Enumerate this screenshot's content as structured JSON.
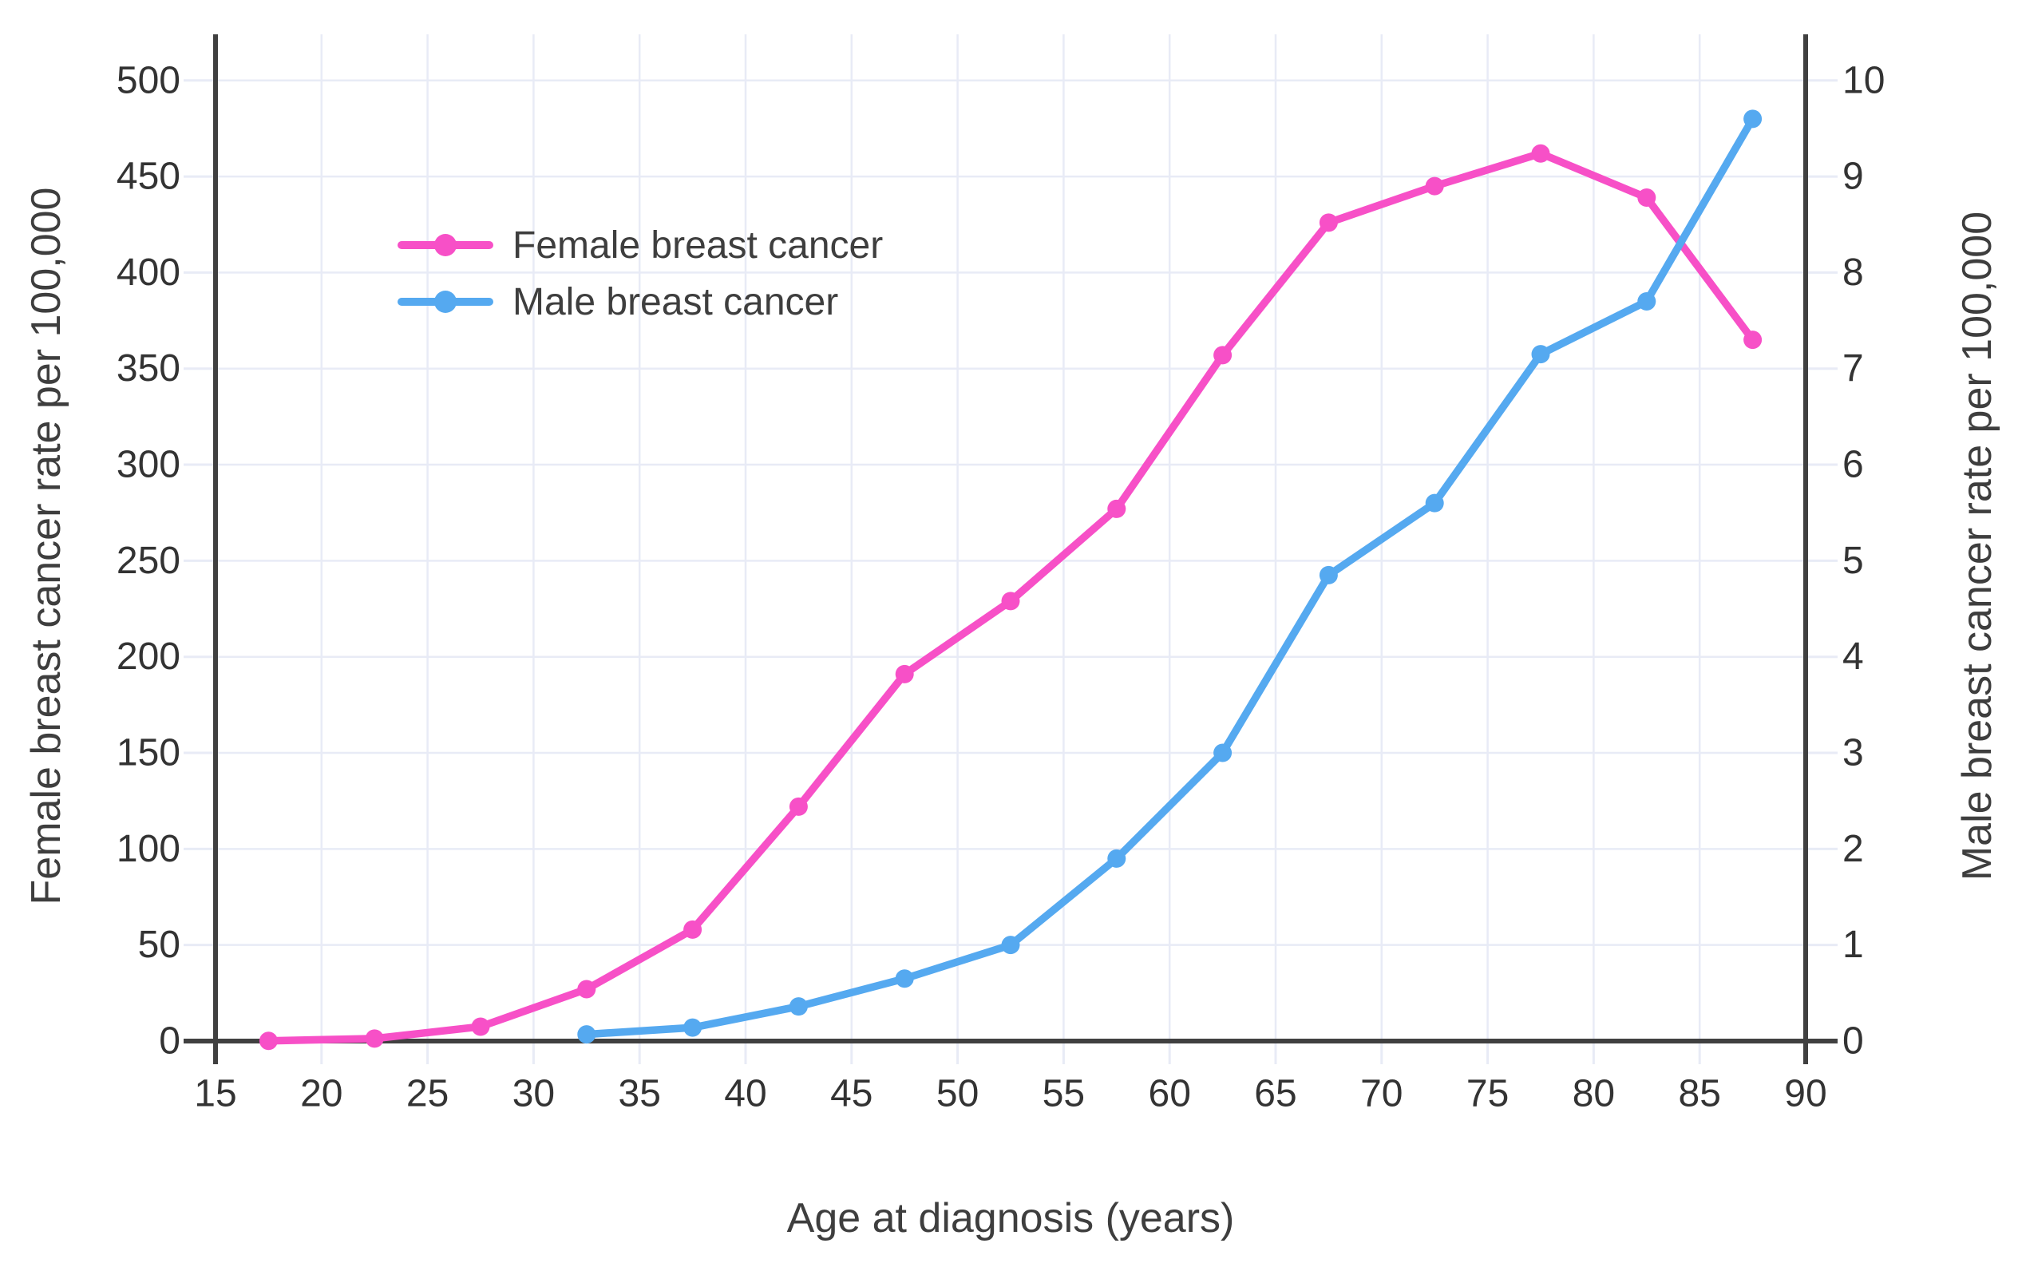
{
  "chart_data": {
    "type": "line",
    "title": "",
    "xlabel": "Age at diagnosis (years)",
    "ylabel_left": "Female breast cancer rate per 100,000",
    "ylabel_right": "Male breast cancer rate per 100,000",
    "x": [
      17.5,
      22.5,
      27.5,
      32.5,
      37.5,
      42.5,
      47.5,
      52.5,
      57.5,
      62.5,
      67.5,
      72.5,
      77.5,
      82.5,
      87.5
    ],
    "series": [
      {
        "name": "Female breast cancer",
        "yaxis": "left",
        "color": "#F750C7",
        "values": [
          0.1,
          1.3,
          7.5,
          27,
          58,
          122,
          191,
          229,
          277,
          357,
          426,
          445,
          462,
          439,
          365
        ]
      },
      {
        "name": "Male breast cancer",
        "yaxis": "right",
        "color": "#55A9F0",
        "values": [
          null,
          null,
          null,
          0.07,
          0.14,
          0.36,
          0.65,
          1.0,
          1.9,
          3.0,
          4.85,
          5.6,
          7.15,
          7.7,
          9.6
        ]
      }
    ],
    "x_ticks": [
      15,
      20,
      25,
      30,
      35,
      40,
      45,
      50,
      55,
      60,
      65,
      70,
      75,
      80,
      85,
      90
    ],
    "y_ticks_left": [
      0,
      50,
      100,
      150,
      200,
      250,
      300,
      350,
      400,
      450,
      500
    ],
    "y_ticks_right": [
      0,
      1,
      2,
      3,
      4,
      5,
      6,
      7,
      8,
      9,
      10
    ],
    "xlim": [
      15,
      90
    ],
    "ylim_left": [
      0,
      524
    ],
    "ylim_right": [
      0,
      10.48
    ],
    "grid": true,
    "legend_position": "upper-left",
    "colors": {
      "grid": "#E8EBF6",
      "axis": "#404040",
      "tick_text": "#333333",
      "title_text": "#3E3E3E",
      "background": "#FFFFFF"
    }
  }
}
